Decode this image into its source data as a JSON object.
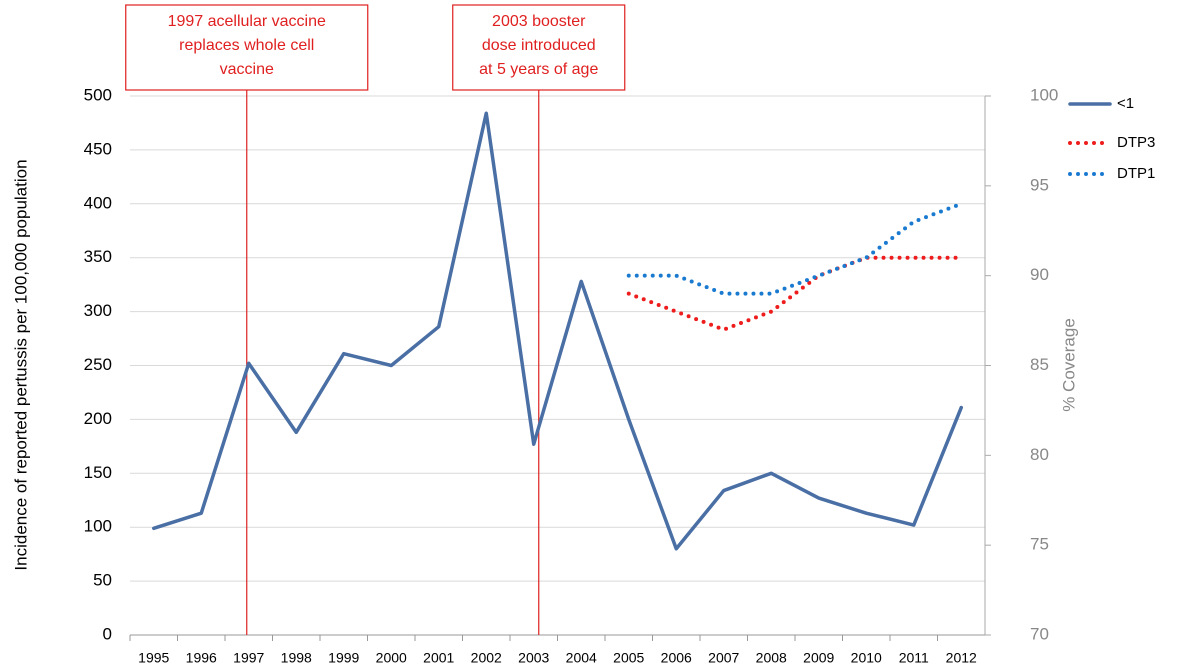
{
  "chart_data": {
    "type": "line",
    "y_label": "Incidence of reported pertussis per 100,000 population",
    "y2_label": "% Coverage",
    "categories": [
      "1995",
      "1996",
      "1997",
      "1998",
      "1999",
      "2000",
      "2001",
      "2002",
      "2003",
      "2004",
      "2005",
      "2006",
      "2007",
      "2008",
      "2009",
      "2010",
      "2011",
      "2012"
    ],
    "series": [
      {
        "name": "<1",
        "color": "#4a6fa5",
        "style": "solid",
        "values": [
          99,
          113,
          252,
          188,
          261,
          250,
          286,
          484,
          177,
          328,
          200,
          80,
          134,
          150,
          127,
          113,
          102,
          211
        ]
      },
      {
        "name": "DTP3",
        "color": "#ee1c1c",
        "style": "dotted",
        "axis": "y2",
        "values": [
          null,
          null,
          null,
          null,
          null,
          null,
          null,
          null,
          null,
          null,
          89,
          88,
          87,
          88,
          90,
          91,
          91,
          91
        ]
      },
      {
        "name": "DTP1",
        "color": "#1a7ad0",
        "style": "dotted",
        "axis": "y2",
        "values": [
          null,
          null,
          null,
          null,
          null,
          null,
          null,
          null,
          null,
          null,
          90,
          90,
          89,
          89,
          90,
          91,
          93,
          94
        ]
      }
    ],
    "ylim": [
      0,
      500
    ],
    "yticks": [
      0,
      50,
      100,
      150,
      200,
      250,
      300,
      350,
      400,
      450,
      500
    ],
    "y2lim": [
      70,
      100
    ],
    "y2ticks": [
      70,
      75,
      80,
      85,
      90,
      95,
      100
    ],
    "grid": true,
    "legend": "right",
    "annotations": [
      {
        "category": "1997",
        "lines": [
          "1997 acellular vaccine",
          "replaces whole cell",
          "vaccine"
        ],
        "color": "#e02020"
      },
      {
        "category": "2003",
        "lines": [
          "2003 booster",
          "dose introduced",
          "at 5 years of age"
        ],
        "color": "#e02020"
      }
    ]
  }
}
